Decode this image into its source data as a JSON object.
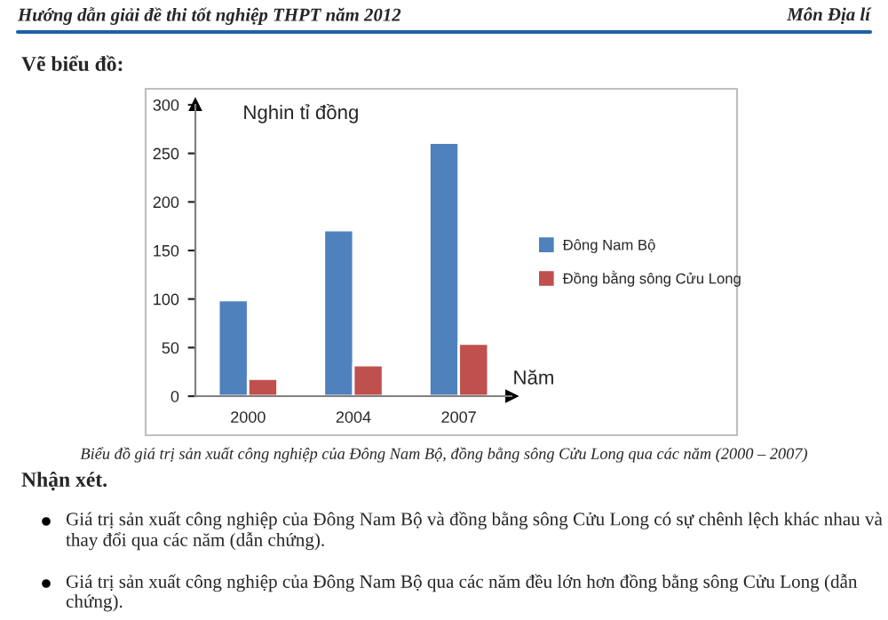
{
  "chart_data": {
    "type": "bar",
    "categories": [
      "2000",
      "2004",
      "2007"
    ],
    "series": [
      {
        "name": "Đông Nam Bộ",
        "color": "#4f81bd",
        "values": [
          99,
          171,
          261
        ]
      },
      {
        "name": "Đồng bằng sông Cửu Long",
        "color": "#c0504d",
        "values": [
          18,
          32,
          54
        ]
      }
    ],
    "xlabel": "Năm",
    "ylabel": "Nghin tỉ đồng",
    "ylim": [
      0,
      300
    ],
    "yticks": [
      0,
      50,
      100,
      150,
      200,
      250,
      300
    ],
    "grid": false,
    "legend": "right",
    "annotations": [
      "Hướng dẫn giải đề thi tốt nghiệp THPT năm 2012",
      "Môn Địa lí",
      "Vẽ biểu đồ:",
      "Biểu đồ giá trị sản xuất công nghiệp của Đông Nam Bộ, đồng bằng sông Cửu Long qua các năm (2000 – 2007)",
      "Nhận xét.",
      "Giá trị sản xuất công nghiệp của Đông Nam Bộ và đồng bằng sông Cửu Long có sự chênh lệch khác nhau và thay đổi qua các năm (dẫn chứng).",
      "Giá trị sản xuất công nghiệp của Đông Nam Bộ qua các năm đều lớn hơn đồng bằng sông Cửu Long (dẫn chứng)."
    ]
  }
}
